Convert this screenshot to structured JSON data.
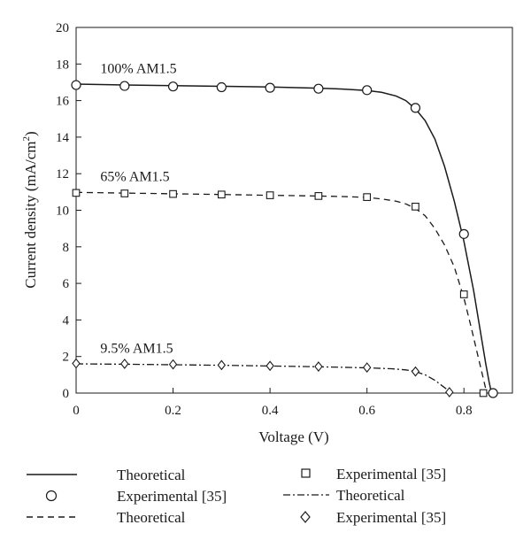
{
  "chart_data": {
    "type": "line",
    "xlabel": "Voltage (V)",
    "ylabel_main": "Current density (mA/cm",
    "ylabel_sup": "2",
    "ylabel_close": ")",
    "xlim": [
      0,
      0.9
    ],
    "ylim": [
      0,
      20
    ],
    "xticks": [
      0,
      0.2,
      0.4,
      0.6,
      0.8
    ],
    "xtick_labels": [
      "0",
      "0.2",
      "0.4",
      "0.6",
      "0.8"
    ],
    "yticks": [
      0,
      2,
      4,
      6,
      8,
      10,
      12,
      14,
      16,
      18,
      20
    ],
    "ytick_labels": [
      "0",
      "2",
      "4",
      "6",
      "8",
      "10",
      "12",
      "14",
      "16",
      "18",
      "20"
    ],
    "grid": false,
    "legend_position": "below",
    "annotations": [
      {
        "text": "100% AM1.5",
        "x": 0.05,
        "y": 17.5
      },
      {
        "text": "65% AM1.5",
        "x": 0.05,
        "y": 11.6
      },
      {
        "text": "9.5% AM1.5",
        "x": 0.05,
        "y": 2.2
      }
    ],
    "series": [
      {
        "name": "Theoretical",
        "kind": "line",
        "dash": "solid",
        "x": [
          0,
          0.1,
          0.2,
          0.3,
          0.4,
          0.5,
          0.55,
          0.6,
          0.63,
          0.66,
          0.68,
          0.7,
          0.72,
          0.74,
          0.76,
          0.78,
          0.8,
          0.82,
          0.835,
          0.845,
          0.852,
          0.857
        ],
        "y": [
          16.9,
          16.85,
          16.82,
          16.78,
          16.74,
          16.68,
          16.63,
          16.55,
          16.45,
          16.25,
          16.0,
          15.55,
          14.9,
          13.9,
          12.4,
          10.5,
          8.3,
          5.6,
          3.2,
          1.6,
          0.6,
          0.0
        ]
      },
      {
        "name": "Experimental [35]",
        "kind": "marker",
        "marker": "circle",
        "x": [
          0,
          0.1,
          0.2,
          0.3,
          0.4,
          0.5,
          0.6,
          0.7,
          0.8,
          0.86
        ],
        "y": [
          16.85,
          16.8,
          16.77,
          16.73,
          16.7,
          16.65,
          16.57,
          15.6,
          8.7,
          0.0
        ]
      },
      {
        "name": "Theoretical",
        "kind": "line",
        "dash": "dashed",
        "x": [
          0,
          0.1,
          0.2,
          0.3,
          0.4,
          0.5,
          0.55,
          0.6,
          0.63,
          0.66,
          0.68,
          0.7,
          0.72,
          0.74,
          0.76,
          0.78,
          0.8,
          0.815,
          0.83,
          0.84,
          0.847
        ],
        "y": [
          10.98,
          10.94,
          10.9,
          10.86,
          10.82,
          10.78,
          10.75,
          10.7,
          10.62,
          10.5,
          10.35,
          10.1,
          9.7,
          9.0,
          8.1,
          6.9,
          5.2,
          3.6,
          1.9,
          0.8,
          0.0
        ]
      },
      {
        "name": "Experimental [35]",
        "kind": "marker",
        "marker": "square",
        "x": [
          0,
          0.1,
          0.2,
          0.3,
          0.4,
          0.5,
          0.6,
          0.7,
          0.8,
          0.84
        ],
        "y": [
          10.95,
          10.92,
          10.89,
          10.86,
          10.82,
          10.78,
          10.72,
          10.2,
          5.4,
          0.0
        ]
      },
      {
        "name": "Theoretical",
        "kind": "line",
        "dash": "dashdot",
        "x": [
          0,
          0.1,
          0.2,
          0.3,
          0.4,
          0.5,
          0.6,
          0.65,
          0.68,
          0.7,
          0.72,
          0.74,
          0.76,
          0.775
        ],
        "y": [
          1.6,
          1.58,
          1.55,
          1.52,
          1.48,
          1.44,
          1.38,
          1.33,
          1.27,
          1.18,
          1.0,
          0.7,
          0.3,
          0.0
        ]
      },
      {
        "name": "Experimental [35]",
        "kind": "marker",
        "marker": "diamond",
        "x": [
          0,
          0.1,
          0.2,
          0.3,
          0.4,
          0.5,
          0.6,
          0.7,
          0.77
        ],
        "y": [
          1.62,
          1.6,
          1.57,
          1.53,
          1.49,
          1.45,
          1.4,
          1.18,
          0.05
        ]
      }
    ]
  }
}
